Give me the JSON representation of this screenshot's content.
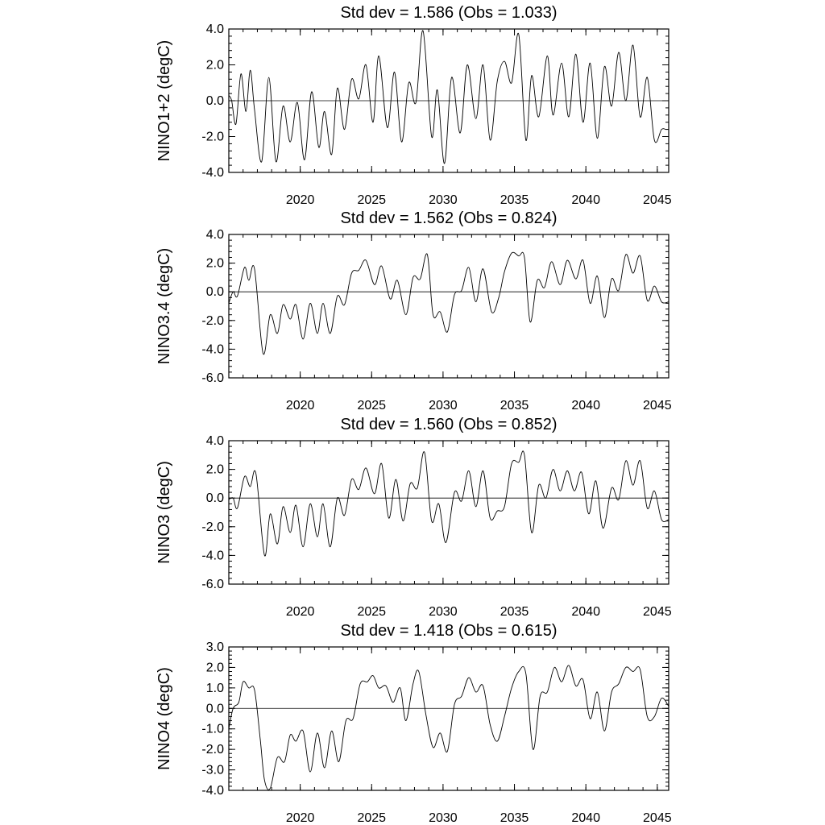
{
  "chart_data": [
    {
      "type": "line",
      "title": "Std dev = 1.586 (Obs = 1.033)",
      "ylabel": "NINO1+2 (degC)",
      "xlabel": "",
      "xlim": [
        2015.0,
        2045.8
      ],
      "ylim": [
        -4.0,
        4.0
      ],
      "y_ticks": [
        -4.0,
        -2.0,
        0.0,
        2.0,
        4.0
      ],
      "y_tick_labels": [
        "-4.0",
        "-2.0",
        "0.0",
        "2.0",
        "4.0"
      ],
      "x_ticks": [
        2020,
        2025,
        2030,
        2035,
        2040,
        2045
      ],
      "x_tick_labels": [
        "2020",
        "2025",
        "2030",
        "2035",
        "2040",
        "2045"
      ],
      "reference_line": 0.0,
      "grid": false,
      "series": [
        {
          "x": [
            2015.0,
            2015.2,
            2015.5,
            2015.85,
            2016.2,
            2016.5,
            2016.8,
            2017.3,
            2017.8,
            2018.3,
            2018.8,
            2019.3,
            2019.8,
            2020.3,
            2020.8,
            2021.3,
            2021.7,
            2022.2,
            2022.6,
            2023.1,
            2023.6,
            2024.1,
            2024.6,
            2025.1,
            2025.5,
            2026.1,
            2026.6,
            2027.1,
            2027.6,
            2028.1,
            2028.6,
            2029.2,
            2029.6,
            2030.1,
            2030.6,
            2031.2,
            2031.7,
            2032.3,
            2032.8,
            2033.3,
            2033.8,
            2034.3,
            2034.8,
            2035.3,
            2035.8,
            2036.2,
            2036.7,
            2037.3,
            2037.7,
            2038.3,
            2038.8,
            2039.3,
            2039.8,
            2040.3,
            2040.8,
            2041.3,
            2041.8,
            2042.3,
            2042.8,
            2043.3,
            2043.8,
            2044.3,
            2044.8,
            2045.3,
            2045.6,
            2045.8
          ],
          "y": [
            0.3,
            0.0,
            -1.3,
            1.5,
            -0.6,
            1.7,
            -0.5,
            -3.4,
            1.3,
            -3.4,
            -0.3,
            -2.3,
            -0.1,
            -3.3,
            0.5,
            -2.6,
            -0.6,
            -3.0,
            0.7,
            -1.6,
            1.2,
            0.1,
            2.0,
            -1.2,
            2.5,
            -1.5,
            1.6,
            -2.3,
            1.0,
            -0.1,
            3.9,
            -2.0,
            0.6,
            -3.5,
            1.3,
            -1.8,
            2.0,
            -1.0,
            2.0,
            -2.2,
            1.1,
            2.2,
            1.0,
            3.7,
            -2.2,
            1.4,
            -0.9,
            2.5,
            -0.8,
            2.1,
            -0.9,
            2.6,
            -1.2,
            2.1,
            -2.1,
            1.9,
            -0.3,
            2.7,
            0.0,
            3.1,
            -0.9,
            1.3,
            -2.2,
            -1.6,
            -1.6,
            -1.6
          ]
        }
      ]
    },
    {
      "type": "line",
      "title": "Std dev = 1.562 (Obs = 0.824)",
      "ylabel": "NINO3.4 (degC)",
      "xlabel": "",
      "xlim": [
        2015.0,
        2045.8
      ],
      "ylim": [
        -6.0,
        4.0
      ],
      "y_ticks": [
        -6.0,
        -4.0,
        -2.0,
        0.0,
        2.0,
        4.0
      ],
      "y_tick_labels": [
        "-6.0",
        "-4.0",
        "-2.0",
        "0.0",
        "2.0",
        "4.0"
      ],
      "x_ticks": [
        2020,
        2025,
        2030,
        2035,
        2040,
        2045
      ],
      "x_tick_labels": [
        "2020",
        "2025",
        "2030",
        "2035",
        "2040",
        "2045"
      ],
      "reference_line": 0.0,
      "grid": false,
      "series": [
        {
          "x": [
            2015.0,
            2015.3,
            2015.6,
            2016.1,
            2016.4,
            2016.8,
            2017.4,
            2017.9,
            2018.4,
            2018.8,
            2019.3,
            2019.7,
            2020.2,
            2020.7,
            2021.2,
            2021.6,
            2022.1,
            2022.6,
            2023.1,
            2023.6,
            2024.1,
            2024.6,
            2025.2,
            2025.7,
            2026.3,
            2026.8,
            2027.4,
            2027.9,
            2028.4,
            2028.9,
            2029.3,
            2029.8,
            2030.3,
            2030.8,
            2031.3,
            2031.8,
            2032.3,
            2032.8,
            2033.4,
            2033.9,
            2034.3,
            2034.8,
            2035.3,
            2035.7,
            2036.1,
            2036.6,
            2037.1,
            2037.6,
            2038.2,
            2038.7,
            2039.3,
            2039.8,
            2040.3,
            2040.8,
            2041.3,
            2041.8,
            2042.3,
            2042.8,
            2043.3,
            2043.8,
            2044.3,
            2044.8,
            2045.3,
            2045.8
          ],
          "y": [
            -0.8,
            0.0,
            -0.3,
            1.7,
            0.8,
            1.6,
            -4.3,
            -1.6,
            -2.9,
            -0.9,
            -1.9,
            -0.9,
            -3.3,
            -0.8,
            -2.9,
            -0.8,
            -2.9,
            -0.3,
            -0.9,
            1.3,
            1.5,
            2.2,
            0.5,
            1.8,
            -0.5,
            0.8,
            -1.6,
            1.0,
            0.9,
            2.6,
            -1.6,
            -1.4,
            -2.8,
            -0.2,
            0.1,
            1.7,
            -0.7,
            1.6,
            -1.4,
            -0.4,
            1.4,
            2.7,
            2.5,
            2.4,
            -2.1,
            0.8,
            0.3,
            2.1,
            0.5,
            2.2,
            0.9,
            2.2,
            -0.8,
            1.1,
            -1.8,
            0.9,
            0.1,
            2.6,
            1.3,
            2.5,
            -0.6,
            0.4,
            -0.7,
            -0.7
          ]
        }
      ]
    },
    {
      "type": "line",
      "title": "Std dev = 1.560 (Obs = 0.852)",
      "ylabel": "NINO3 (degC)",
      "xlabel": "",
      "xlim": [
        2015.0,
        2045.8
      ],
      "ylim": [
        -6.0,
        4.0
      ],
      "y_ticks": [
        -6.0,
        -4.0,
        -2.0,
        0.0,
        2.0,
        4.0
      ],
      "y_tick_labels": [
        "-6.0",
        "-4.0",
        "-2.0",
        "0.0",
        "2.0",
        "4.0"
      ],
      "x_ticks": [
        2020,
        2025,
        2030,
        2035,
        2040,
        2045
      ],
      "x_tick_labels": [
        "2020",
        "2025",
        "2030",
        "2035",
        "2040",
        "2045"
      ],
      "reference_line": 0.0,
      "grid": false,
      "series": [
        {
          "x": [
            2015.0,
            2015.3,
            2015.6,
            2016.1,
            2016.5,
            2016.9,
            2017.5,
            2017.9,
            2018.4,
            2018.8,
            2019.3,
            2019.7,
            2020.2,
            2020.7,
            2021.2,
            2021.6,
            2022.1,
            2022.6,
            2023.1,
            2023.6,
            2024.1,
            2024.6,
            2025.2,
            2025.7,
            2026.2,
            2026.7,
            2027.2,
            2027.7,
            2028.2,
            2028.7,
            2029.2,
            2029.7,
            2030.2,
            2030.8,
            2031.3,
            2031.8,
            2032.3,
            2032.8,
            2033.3,
            2033.8,
            2034.3,
            2034.8,
            2035.3,
            2035.7,
            2036.2,
            2036.7,
            2037.2,
            2037.7,
            2038.2,
            2038.7,
            2039.2,
            2039.7,
            2040.2,
            2040.7,
            2041.2,
            2041.8,
            2042.3,
            2042.8,
            2043.3,
            2043.8,
            2044.3,
            2044.8,
            2045.3,
            2045.8
          ],
          "y": [
            -0.1,
            0.0,
            -0.7,
            1.5,
            0.8,
            1.7,
            -4.0,
            -1.1,
            -3.2,
            -0.6,
            -2.4,
            -0.5,
            -3.4,
            -0.4,
            -2.7,
            -0.4,
            -3.4,
            0.0,
            -1.2,
            1.3,
            0.6,
            2.1,
            0.3,
            2.4,
            -1.4,
            1.3,
            -1.6,
            1.0,
            0.7,
            3.2,
            -1.6,
            -0.4,
            -3.1,
            0.4,
            -0.2,
            1.9,
            -0.6,
            1.9,
            -1.4,
            -0.9,
            -0.6,
            2.4,
            2.5,
            3.0,
            -2.4,
            0.9,
            0.0,
            2.0,
            0.5,
            1.9,
            0.5,
            1.8,
            -1.1,
            1.2,
            -2.1,
            0.7,
            -0.1,
            2.6,
            0.9,
            2.6,
            -0.7,
            0.5,
            -1.5,
            -1.5
          ]
        }
      ]
    },
    {
      "type": "line",
      "title": "Std dev = 1.418 (Obs = 0.615)",
      "ylabel": "NINO4 (degC)",
      "xlabel": "",
      "xlim": [
        2015.0,
        2045.8
      ],
      "ylim": [
        -4.0,
        3.0
      ],
      "y_ticks": [
        -4.0,
        -3.0,
        -2.0,
        -1.0,
        0.0,
        1.0,
        2.0,
        3.0
      ],
      "y_tick_labels": [
        "-4.0",
        "-3.0",
        "-2.0",
        "-1.0",
        "0.0",
        "1.0",
        "2.0",
        "3.0"
      ],
      "x_ticks": [
        2020,
        2025,
        2030,
        2035,
        2040,
        2045
      ],
      "x_tick_labels": [
        "2020",
        "2025",
        "2030",
        "2035",
        "2040",
        "2045"
      ],
      "reference_line": 0.0,
      "grid": false,
      "series": [
        {
          "x": [
            2015.0,
            2015.3,
            2015.7,
            2016.0,
            2016.4,
            2016.8,
            2017.2,
            2017.5,
            2017.9,
            2018.4,
            2018.9,
            2019.3,
            2019.7,
            2020.2,
            2020.7,
            2021.2,
            2021.7,
            2022.2,
            2022.7,
            2023.2,
            2023.7,
            2024.2,
            2024.7,
            2025.1,
            2025.5,
            2026.0,
            2026.5,
            2027.0,
            2027.4,
            2027.9,
            2028.3,
            2028.8,
            2029.3,
            2029.8,
            2030.3,
            2030.8,
            2031.3,
            2031.8,
            2032.3,
            2032.8,
            2033.3,
            2033.8,
            2034.3,
            2034.8,
            2035.3,
            2035.8,
            2036.3,
            2036.8,
            2037.3,
            2037.8,
            2038.3,
            2038.8,
            2039.3,
            2039.8,
            2040.3,
            2040.8,
            2041.3,
            2041.8,
            2042.3,
            2042.8,
            2043.3,
            2043.8,
            2044.3,
            2044.8,
            2045.3,
            2045.8
          ],
          "y": [
            -1.0,
            0.0,
            0.3,
            1.3,
            1.0,
            0.9,
            -1.5,
            -3.5,
            -3.9,
            -2.4,
            -2.6,
            -1.3,
            -1.6,
            -1.1,
            -3.1,
            -1.2,
            -2.9,
            -1.1,
            -2.6,
            -0.6,
            -0.5,
            1.2,
            1.3,
            1.6,
            1.0,
            1.1,
            0.3,
            1.0,
            -0.6,
            1.2,
            1.8,
            -0.3,
            -1.9,
            -1.2,
            -2.1,
            0.2,
            0.6,
            1.5,
            0.8,
            1.1,
            -0.8,
            -1.6,
            -0.4,
            1.0,
            1.8,
            1.7,
            -2.0,
            0.6,
            0.8,
            2.0,
            1.3,
            2.1,
            1.1,
            1.4,
            -0.5,
            0.8,
            -1.1,
            0.8,
            1.2,
            2.0,
            1.8,
            1.9,
            -0.4,
            -0.4,
            0.5,
            0.1
          ]
        }
      ]
    }
  ]
}
